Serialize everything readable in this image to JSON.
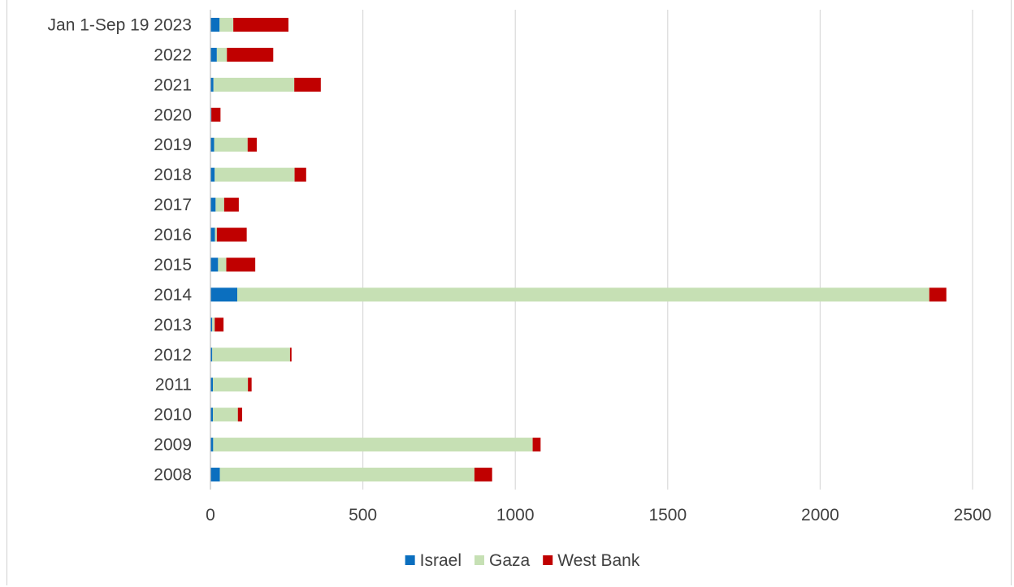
{
  "chart_data": {
    "type": "bar",
    "orientation": "horizontal",
    "stacked": true,
    "title": "",
    "xlabel": "",
    "ylabel": "",
    "xlim": [
      0,
      2500
    ],
    "x_ticks": [
      0,
      500,
      1000,
      1500,
      2000,
      2500
    ],
    "grid": "vertical",
    "legend_position": "bottom",
    "categories": [
      "Jan 1-Sep 19 2023",
      "2022",
      "2021",
      "2020",
      "2019",
      "2018",
      "2017",
      "2016",
      "2015",
      "2014",
      "2013",
      "2012",
      "2011",
      "2010",
      "2009",
      "2008"
    ],
    "series": [
      {
        "name": "Israel",
        "color": "#0b6fbf",
        "values": [
          30,
          21,
          10,
          3,
          12,
          14,
          17,
          15,
          25,
          88,
          6,
          6,
          8,
          8,
          9,
          31
        ]
      },
      {
        "name": "Gaza",
        "color": "#c6e0b4",
        "values": [
          45,
          33,
          265,
          0,
          110,
          262,
          28,
          6,
          27,
          2270,
          8,
          255,
          115,
          82,
          1048,
          835
        ]
      },
      {
        "name": "West Bank",
        "color": "#c00000",
        "values": [
          181,
          152,
          87,
          30,
          30,
          38,
          48,
          98,
          95,
          56,
          29,
          5,
          12,
          14,
          26,
          58
        ]
      }
    ]
  }
}
